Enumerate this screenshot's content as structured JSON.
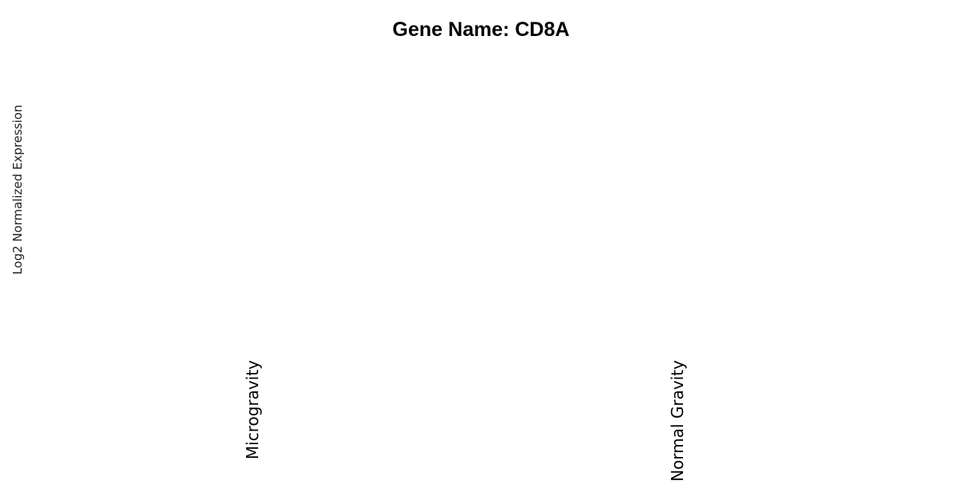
{
  "chart_data": {
    "type": "bar",
    "title": "Gene Name: CD8A",
    "xlabel": "",
    "ylabel": "Log2 Normalized Expression",
    "categories": [
      "Microgravity",
      "Normal Gravity"
    ],
    "series": [
      {
        "values": [
          null,
          null
        ]
      }
    ],
    "grid": false,
    "legend": "none"
  }
}
